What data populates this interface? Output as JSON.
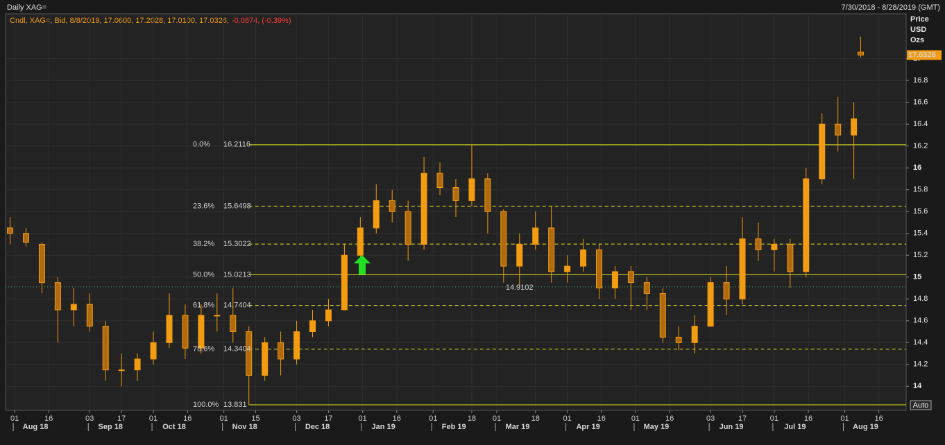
{
  "chart_data": {
    "type": "candlestick",
    "title": "Daily XAG=",
    "date_range": "7/30/2018 - 8/28/2019 (GMT)",
    "legend_text": "Cndl, XAG=, Bid, 8/8/2019, 17.0600, 17.2028, 17.0100, 17.0326,",
    "legend_change": "-0.0674, (-0.39%)",
    "y_title": [
      "Price",
      "USD",
      "Ozs"
    ],
    "auto_button": "Auto",
    "color": "#f39c12",
    "grid": true,
    "x": [
      "2018-07-30",
      "2018-08-06",
      "2018-08-13",
      "2018-08-20",
      "2018-08-27",
      "2018-09-03",
      "2018-09-10",
      "2018-09-17",
      "2018-09-24",
      "2018-10-01",
      "2018-10-08",
      "2018-10-15",
      "2018-10-22",
      "2018-10-29",
      "2018-11-05",
      "2018-11-12",
      "2018-11-19",
      "2018-11-26",
      "2018-12-03",
      "2018-12-10",
      "2018-12-17",
      "2018-12-24",
      "2018-12-31",
      "2019-01-07",
      "2019-01-14",
      "2019-01-21",
      "2019-01-28",
      "2019-02-04",
      "2019-02-11",
      "2019-02-18",
      "2019-02-25",
      "2019-03-04",
      "2019-03-11",
      "2019-03-18",
      "2019-03-25",
      "2019-04-01",
      "2019-04-08",
      "2019-04-15",
      "2019-04-22",
      "2019-04-29",
      "2019-05-06",
      "2019-05-13",
      "2019-05-20",
      "2019-05-27",
      "2019-06-03",
      "2019-06-10",
      "2019-06-17",
      "2019-06-24",
      "2019-07-01",
      "2019-07-08",
      "2019-07-15",
      "2019-07-22",
      "2019-07-29",
      "2019-08-05",
      "2019-08-08"
    ],
    "open": [
      15.45,
      15.4,
      15.3,
      14.95,
      14.7,
      14.75,
      14.55,
      14.15,
      14.15,
      14.25,
      14.4,
      14.65,
      14.35,
      14.65,
      14.65,
      14.5,
      14.1,
      14.4,
      14.25,
      14.5,
      14.6,
      14.7,
      15.2,
      15.45,
      15.7,
      15.6,
      15.3,
      15.95,
      15.82,
      15.7,
      15.9,
      15.6,
      15.1,
      15.3,
      15.45,
      15.05,
      15.1,
      15.25,
      14.9,
      15.05,
      14.95,
      14.85,
      14.45,
      14.4,
      14.55,
      14.95,
      14.8,
      15.35,
      15.25,
      15.3,
      15.05,
      15.9,
      16.4,
      16.3,
      17.06
    ],
    "high": [
      15.55,
      15.45,
      15.32,
      15.0,
      14.9,
      14.85,
      14.6,
      14.3,
      14.3,
      14.5,
      14.85,
      14.75,
      14.75,
      14.85,
      14.9,
      14.55,
      14.45,
      14.5,
      14.6,
      14.7,
      14.8,
      15.3,
      15.55,
      15.85,
      15.8,
      15.7,
      16.1,
      16.05,
      15.9,
      16.2116,
      15.95,
      15.62,
      15.4,
      15.6,
      15.65,
      15.2,
      15.35,
      15.3,
      15.1,
      15.1,
      15.0,
      14.9,
      14.55,
      14.65,
      15.0,
      15.1,
      15.55,
      15.5,
      15.35,
      15.35,
      16.0,
      16.5,
      16.65,
      16.6,
      17.2028
    ],
    "low": [
      15.3,
      15.28,
      14.85,
      14.4,
      14.55,
      14.5,
      14.05,
      14.0,
      14.05,
      14.2,
      14.35,
      14.25,
      14.3,
      14.5,
      14.4,
      13.831,
      14.05,
      14.1,
      14.2,
      14.45,
      14.55,
      14.7,
      15.15,
      15.4,
      15.5,
      15.15,
      15.25,
      15.75,
      15.55,
      15.65,
      15.4,
      14.95,
      14.9102,
      15.25,
      14.95,
      14.95,
      15.05,
      14.8,
      14.8,
      14.7,
      14.7,
      14.4,
      14.33,
      14.3,
      14.55,
      14.65,
      14.75,
      15.15,
      15.05,
      14.9,
      15.0,
      15.85,
      16.15,
      15.9,
      17.01
    ],
    "close": [
      15.4,
      15.32,
      14.95,
      14.7,
      14.75,
      14.55,
      14.15,
      14.15,
      14.25,
      14.4,
      14.65,
      14.35,
      14.65,
      14.65,
      14.5,
      14.1,
      14.4,
      14.25,
      14.5,
      14.6,
      14.7,
      15.2,
      15.45,
      15.7,
      15.6,
      15.3,
      15.95,
      15.82,
      15.7,
      15.9,
      15.6,
      15.1,
      15.3,
      15.45,
      15.05,
      15.1,
      15.25,
      14.9,
      15.05,
      14.95,
      14.85,
      14.45,
      14.4,
      14.55,
      14.95,
      14.8,
      15.35,
      15.25,
      15.3,
      15.05,
      15.9,
      16.4,
      16.3,
      16.45,
      17.0326
    ],
    "xlim": [
      "2018-07-28",
      "2019-08-28"
    ],
    "xticks": [
      {
        "value": "2018-08-01",
        "label": "01"
      },
      {
        "value": "2018-08-16",
        "label": "16"
      },
      {
        "value": "2018-09-03",
        "label": "03"
      },
      {
        "value": "2018-09-17",
        "label": "17"
      },
      {
        "value": "2018-10-01",
        "label": "01"
      },
      {
        "value": "2018-10-16",
        "label": "16"
      },
      {
        "value": "2018-11-01",
        "label": "01"
      },
      {
        "value": "2018-11-15",
        "label": "15"
      },
      {
        "value": "2018-12-03",
        "label": "03"
      },
      {
        "value": "2018-12-17",
        "label": "17"
      },
      {
        "value": "2019-01-01",
        "label": "01"
      },
      {
        "value": "2019-01-16",
        "label": "16"
      },
      {
        "value": "2019-02-01",
        "label": "01"
      },
      {
        "value": "2019-02-18",
        "label": "18"
      },
      {
        "value": "2019-03-01",
        "label": "01"
      },
      {
        "value": "2019-03-18",
        "label": "18"
      },
      {
        "value": "2019-04-01",
        "label": "01"
      },
      {
        "value": "2019-04-16",
        "label": "16"
      },
      {
        "value": "2019-05-01",
        "label": "01"
      },
      {
        "value": "2019-05-16",
        "label": "16"
      },
      {
        "value": "2019-06-03",
        "label": "03"
      },
      {
        "value": "2019-06-17",
        "label": "17"
      },
      {
        "value": "2019-07-01",
        "label": "01"
      },
      {
        "value": "2019-07-16",
        "label": "16"
      },
      {
        "value": "2019-08-01",
        "label": "01"
      },
      {
        "value": "2019-08-16",
        "label": "16"
      }
    ],
    "months": [
      {
        "value": "2018-08-01",
        "label": "Aug 18"
      },
      {
        "value": "2018-09-03",
        "label": "Sep 18"
      },
      {
        "value": "2018-10-01",
        "label": "Oct 18"
      },
      {
        "value": "2018-11-01",
        "label": "Nov 18"
      },
      {
        "value": "2018-12-03",
        "label": "Dec 18"
      },
      {
        "value": "2019-01-01",
        "label": "Jan 19"
      },
      {
        "value": "2019-02-01",
        "label": "Feb 19"
      },
      {
        "value": "2019-03-01",
        "label": "Mar 19"
      },
      {
        "value": "2019-04-01",
        "label": "Apr 19"
      },
      {
        "value": "2019-05-01",
        "label": "May 19"
      },
      {
        "value": "2019-06-03",
        "label": "Jun 19"
      },
      {
        "value": "2019-07-01",
        "label": "Jul 19"
      },
      {
        "value": "2019-08-01",
        "label": "Aug 19"
      }
    ],
    "ylim": [
      13.78,
      17.41
    ],
    "yticks": [
      14,
      14.2,
      14.4,
      14.6,
      14.8,
      15,
      15.2,
      15.4,
      15.6,
      15.8,
      16,
      16.2,
      16.4,
      16.6,
      16.8,
      17
    ],
    "fib_start": "2018-11-12",
    "fib_levels": [
      {
        "name": "0.0%",
        "value": 16.2116,
        "style": "solid"
      },
      {
        "name": "23.6%",
        "value": 15.6498,
        "style": "dashed"
      },
      {
        "name": "38.2%",
        "value": 15.3022,
        "style": "dashed"
      },
      {
        "name": "50.0%",
        "value": 15.0213,
        "style": "solid"
      },
      {
        "name": "61.8%",
        "value": 14.7404,
        "style": "dashed"
      },
      {
        "name": "78.6%",
        "value": 14.3404,
        "style": "dashed"
      },
      {
        "name": "100.0%",
        "value": 13.831,
        "style": "solid"
      }
    ],
    "fib_color": "#e8e81a",
    "reference_line": {
      "value": 14.9102,
      "color": "#3cb371",
      "label_at": "2019-03-11"
    }
  }
}
